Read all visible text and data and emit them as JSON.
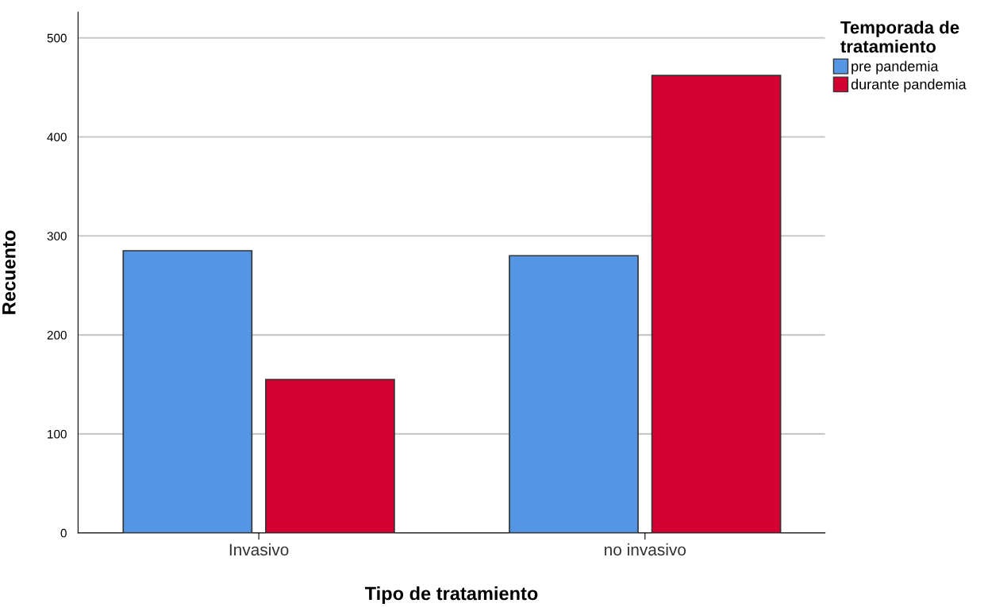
{
  "chart_data": {
    "type": "bar",
    "xlabel": "Tipo de tratamiento",
    "ylabel": "Recuento",
    "legend_title": "Temporada de\ntratamiento",
    "categories": [
      "Invasivo",
      "no invasivo"
    ],
    "series": [
      {
        "name": "pre pandemia",
        "color": "#5496e3",
        "values": [
          285,
          280
        ]
      },
      {
        "name": "durante pandemia",
        "color": "#d50032",
        "values": [
          155,
          462
        ]
      }
    ],
    "ylim": [
      0,
      526
    ],
    "yticks": [
      0,
      100,
      200,
      300,
      400,
      500
    ],
    "grid": "y",
    "legend": "top right"
  }
}
